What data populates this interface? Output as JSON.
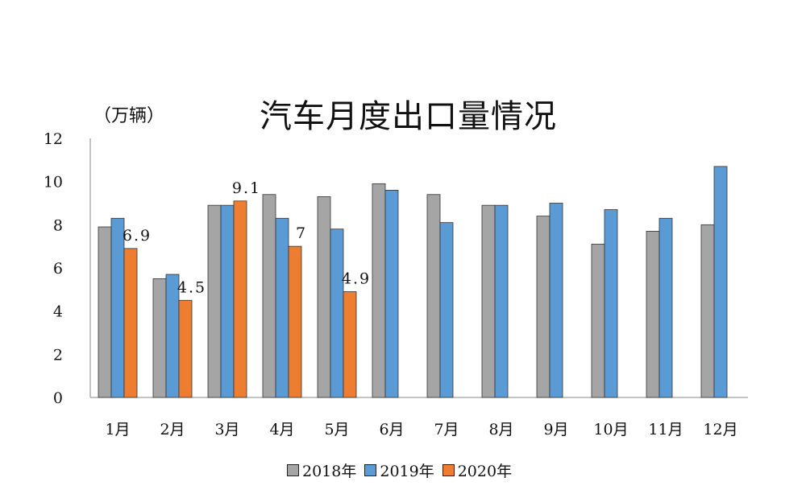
{
  "chart_data": {
    "type": "bar",
    "title": "汽车月度出口量情况",
    "ylabel": "（万辆）",
    "ylim": [
      0,
      12
    ],
    "yticks": [
      "0",
      "2",
      "4",
      "6",
      "8",
      "10",
      "12"
    ],
    "categories": [
      "1月",
      "2月",
      "3月",
      "4月",
      "5月",
      "6月",
      "7月",
      "8月",
      "9月",
      "10月",
      "11月",
      "12月"
    ],
    "series": [
      {
        "name": "2018年",
        "color": "#a5a5a5",
        "values": [
          7.9,
          5.5,
          8.9,
          9.4,
          9.3,
          9.9,
          9.4,
          8.9,
          8.4,
          7.1,
          7.7,
          8.0
        ]
      },
      {
        "name": "2019年",
        "color": "#5b9bd5",
        "values": [
          8.3,
          5.7,
          8.9,
          8.3,
          7.8,
          9.6,
          8.1,
          8.9,
          9.0,
          8.7,
          8.3,
          10.7
        ]
      },
      {
        "name": "2020年",
        "color": "#ed7d31",
        "values": [
          6.9,
          4.5,
          9.1,
          7.0,
          4.9,
          null,
          null,
          null,
          null,
          null,
          null,
          null
        ]
      }
    ],
    "data_labels": [
      "6.9",
      "4.5",
      "9.1",
      "7",
      "4.9"
    ],
    "legend_position": "bottom",
    "grid": false
  }
}
